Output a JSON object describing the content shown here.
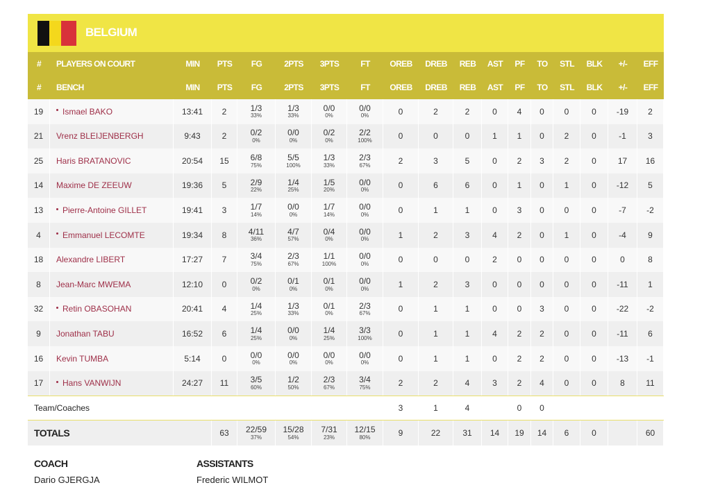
{
  "team": "BELGIUM",
  "header": {
    "court": [
      "#",
      "PLAYERS ON COURT",
      "MIN",
      "PTS",
      "FG",
      "2PTS",
      "3PTS",
      "FT",
      "OREB",
      "DREB",
      "REB",
      "AST",
      "PF",
      "TO",
      "STL",
      "BLK",
      "+/-",
      "EFF"
    ],
    "bench": [
      "#",
      "BENCH",
      "MIN",
      "PTS",
      "FG",
      "2PTS",
      "3PTS",
      "FT",
      "OREB",
      "DREB",
      "REB",
      "AST",
      "PF",
      "TO",
      "STL",
      "BLK",
      "+/-",
      "EFF"
    ]
  },
  "players": [
    {
      "no": "19",
      "name": "Ismael BAKO",
      "starter": true,
      "min": "13:41",
      "pts": "2",
      "fg": [
        "1/3",
        "33%"
      ],
      "p2": [
        "1/3",
        "33%"
      ],
      "p3": [
        "0/0",
        "0%"
      ],
      "ft": [
        "0/0",
        "0%"
      ],
      "oreb": "0",
      "dreb": "2",
      "reb": "2",
      "ast": "0",
      "pf": "4",
      "to": "0",
      "stl": "0",
      "blk": "0",
      "pm": "-19",
      "eff": "2"
    },
    {
      "no": "21",
      "name": "Vrenz BLEIJENBERGH",
      "starter": false,
      "min": "9:43",
      "pts": "2",
      "fg": [
        "0/2",
        "0%"
      ],
      "p2": [
        "0/0",
        "0%"
      ],
      "p3": [
        "0/2",
        "0%"
      ],
      "ft": [
        "2/2",
        "100%"
      ],
      "oreb": "0",
      "dreb": "0",
      "reb": "0",
      "ast": "1",
      "pf": "1",
      "to": "0",
      "stl": "2",
      "blk": "0",
      "pm": "-1",
      "eff": "3"
    },
    {
      "no": "25",
      "name": "Haris BRATANOVIC",
      "starter": false,
      "min": "20:54",
      "pts": "15",
      "fg": [
        "6/8",
        "75%"
      ],
      "p2": [
        "5/5",
        "100%"
      ],
      "p3": [
        "1/3",
        "33%"
      ],
      "ft": [
        "2/3",
        "67%"
      ],
      "oreb": "2",
      "dreb": "3",
      "reb": "5",
      "ast": "0",
      "pf": "2",
      "to": "3",
      "stl": "2",
      "blk": "0",
      "pm": "17",
      "eff": "16"
    },
    {
      "no": "14",
      "name": "Maxime DE ZEEUW",
      "starter": false,
      "min": "19:36",
      "pts": "5",
      "fg": [
        "2/9",
        "22%"
      ],
      "p2": [
        "1/4",
        "25%"
      ],
      "p3": [
        "1/5",
        "20%"
      ],
      "ft": [
        "0/0",
        "0%"
      ],
      "oreb": "0",
      "dreb": "6",
      "reb": "6",
      "ast": "0",
      "pf": "1",
      "to": "0",
      "stl": "1",
      "blk": "0",
      "pm": "-12",
      "eff": "5"
    },
    {
      "no": "13",
      "name": "Pierre-Antoine GILLET",
      "starter": true,
      "min": "19:41",
      "pts": "3",
      "fg": [
        "1/7",
        "14%"
      ],
      "p2": [
        "0/0",
        "0%"
      ],
      "p3": [
        "1/7",
        "14%"
      ],
      "ft": [
        "0/0",
        "0%"
      ],
      "oreb": "0",
      "dreb": "1",
      "reb": "1",
      "ast": "0",
      "pf": "3",
      "to": "0",
      "stl": "0",
      "blk": "0",
      "pm": "-7",
      "eff": "-2"
    },
    {
      "no": "4",
      "name": "Emmanuel LECOMTE",
      "starter": true,
      "min": "19:34",
      "pts": "8",
      "fg": [
        "4/11",
        "36%"
      ],
      "p2": [
        "4/7",
        "57%"
      ],
      "p3": [
        "0/4",
        "0%"
      ],
      "ft": [
        "0/0",
        "0%"
      ],
      "oreb": "1",
      "dreb": "2",
      "reb": "3",
      "ast": "4",
      "pf": "2",
      "to": "0",
      "stl": "1",
      "blk": "0",
      "pm": "-4",
      "eff": "9"
    },
    {
      "no": "18",
      "name": "Alexandre LIBERT",
      "starter": false,
      "min": "17:27",
      "pts": "7",
      "fg": [
        "3/4",
        "75%"
      ],
      "p2": [
        "2/3",
        "67%"
      ],
      "p3": [
        "1/1",
        "100%"
      ],
      "ft": [
        "0/0",
        "0%"
      ],
      "oreb": "0",
      "dreb": "0",
      "reb": "0",
      "ast": "2",
      "pf": "0",
      "to": "0",
      "stl": "0",
      "blk": "0",
      "pm": "0",
      "eff": "8"
    },
    {
      "no": "8",
      "name": "Jean-Marc MWEMA",
      "starter": false,
      "min": "12:10",
      "pts": "0",
      "fg": [
        "0/2",
        "0%"
      ],
      "p2": [
        "0/1",
        "0%"
      ],
      "p3": [
        "0/1",
        "0%"
      ],
      "ft": [
        "0/0",
        "0%"
      ],
      "oreb": "1",
      "dreb": "2",
      "reb": "3",
      "ast": "0",
      "pf": "0",
      "to": "0",
      "stl": "0",
      "blk": "0",
      "pm": "-11",
      "eff": "1"
    },
    {
      "no": "32",
      "name": "Retin OBASOHAN",
      "starter": true,
      "min": "20:41",
      "pts": "4",
      "fg": [
        "1/4",
        "25%"
      ],
      "p2": [
        "1/3",
        "33%"
      ],
      "p3": [
        "0/1",
        "0%"
      ],
      "ft": [
        "2/3",
        "67%"
      ],
      "oreb": "0",
      "dreb": "1",
      "reb": "1",
      "ast": "0",
      "pf": "0",
      "to": "3",
      "stl": "0",
      "blk": "0",
      "pm": "-22",
      "eff": "-2"
    },
    {
      "no": "9",
      "name": "Jonathan TABU",
      "starter": false,
      "min": "16:52",
      "pts": "6",
      "fg": [
        "1/4",
        "25%"
      ],
      "p2": [
        "0/0",
        "0%"
      ],
      "p3": [
        "1/4",
        "25%"
      ],
      "ft": [
        "3/3",
        "100%"
      ],
      "oreb": "0",
      "dreb": "1",
      "reb": "1",
      "ast": "4",
      "pf": "2",
      "to": "2",
      "stl": "0",
      "blk": "0",
      "pm": "-11",
      "eff": "6"
    },
    {
      "no": "16",
      "name": "Kevin TUMBA",
      "starter": false,
      "min": "5:14",
      "pts": "0",
      "fg": [
        "0/0",
        "0%"
      ],
      "p2": [
        "0/0",
        "0%"
      ],
      "p3": [
        "0/0",
        "0%"
      ],
      "ft": [
        "0/0",
        "0%"
      ],
      "oreb": "0",
      "dreb": "1",
      "reb": "1",
      "ast": "0",
      "pf": "2",
      "to": "2",
      "stl": "0",
      "blk": "0",
      "pm": "-13",
      "eff": "-1"
    },
    {
      "no": "17",
      "name": "Hans VANWIJN",
      "starter": true,
      "min": "24:27",
      "pts": "11",
      "fg": [
        "3/5",
        "60%"
      ],
      "p2": [
        "1/2",
        "50%"
      ],
      "p3": [
        "2/3",
        "67%"
      ],
      "ft": [
        "3/4",
        "75%"
      ],
      "oreb": "2",
      "dreb": "2",
      "reb": "4",
      "ast": "3",
      "pf": "2",
      "to": "4",
      "stl": "0",
      "blk": "0",
      "pm": "8",
      "eff": "11"
    }
  ],
  "team_row": {
    "label": "Team/Coaches",
    "oreb": "3",
    "dreb": "1",
    "reb": "4",
    "pf": "0",
    "to": "0"
  },
  "totals": {
    "label": "TOTALS",
    "pts": "63",
    "fg": [
      "22/59",
      "37%"
    ],
    "p2": [
      "15/28",
      "54%"
    ],
    "p3": [
      "7/31",
      "23%"
    ],
    "ft": [
      "12/15",
      "80%"
    ],
    "oreb": "9",
    "dreb": "22",
    "reb": "31",
    "ast": "14",
    "pf": "19",
    "to": "14",
    "stl": "6",
    "blk": "0",
    "eff": "60"
  },
  "staff": {
    "coach_label": "COACH",
    "coach": "Dario GJERGJA",
    "assistants_label": "ASSISTANTS",
    "assistants": "Frederic WILMOT"
  }
}
